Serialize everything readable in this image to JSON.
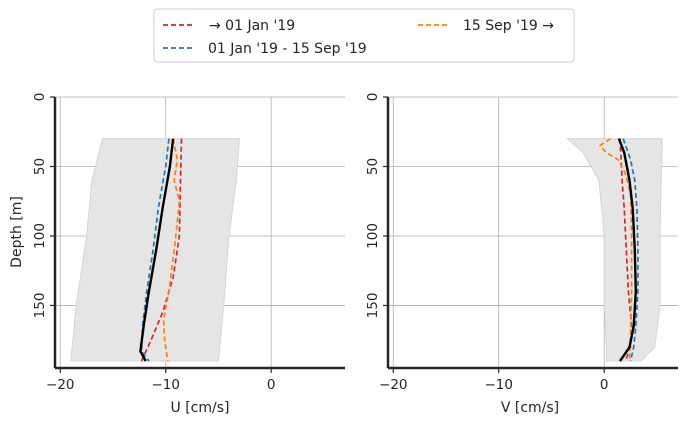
{
  "legend": {
    "entries": [
      {
        "label": "→ 01 Jan '19",
        "color": "#d62728"
      },
      {
        "label": "01 Jan '19 - 15 Sep '19",
        "color": "#1f77b4"
      },
      {
        "label": "15 Sep '19 →",
        "color": "#ff7f0e"
      }
    ]
  },
  "chart_data": [
    {
      "type": "line",
      "xlabel": "U [cm/s]",
      "ylabel": "Depth [m]",
      "xlim": [
        -20.5,
        7
      ],
      "ylim": [
        195,
        0
      ],
      "xticks": [
        -20,
        -10,
        0
      ],
      "xtick_labels": [
        "−20",
        "−10",
        "0"
      ],
      "yticks": [
        0,
        50,
        100,
        150
      ],
      "ytick_labels": [
        "0",
        "50",
        "100",
        "150"
      ],
      "grid": true,
      "band": {
        "color": "#e5e5e5",
        "depth": [
          30,
          60,
          100,
          150,
          190
        ],
        "lower": [
          -16,
          -17,
          -17.5,
          -18.5,
          -19
        ],
        "upper": [
          -3,
          -3.3,
          -4,
          -4.5,
          -5
        ]
      },
      "series": [
        {
          "color": "#d62728",
          "style": "dashed",
          "depth": [
            30,
            60,
            100,
            130,
            155,
            175,
            190
          ],
          "values": [
            -8.5,
            -8.6,
            -8.7,
            -9.3,
            -10.3,
            -11.4,
            -12.3
          ]
        },
        {
          "color": "#1f77b4",
          "style": "dashed",
          "depth": [
            30,
            50,
            80,
            110,
            140,
            165,
            183,
            190
          ],
          "values": [
            -9.7,
            -10.0,
            -10.7,
            -11.2,
            -11.8,
            -12.2,
            -12.3,
            -11.6
          ]
        },
        {
          "color": "#ff7f0e",
          "style": "dashed",
          "depth": [
            30,
            45,
            60,
            75,
            90,
            110,
            140,
            160,
            175,
            190
          ],
          "values": [
            -9.3,
            -8.9,
            -9.2,
            -8.7,
            -8.9,
            -9.2,
            -9.7,
            -10.2,
            -10.1,
            -9.8
          ]
        },
        {
          "color": "#000000",
          "style": "solid",
          "depth": [
            30,
            50,
            80,
            110,
            140,
            165,
            183,
            190
          ],
          "values": [
            -9.3,
            -9.6,
            -10.3,
            -10.9,
            -11.6,
            -12.1,
            -12.4,
            -11.9
          ]
        }
      ]
    },
    {
      "type": "line",
      "xlabel": "V [cm/s]",
      "ylabel": "",
      "xlim": [
        -20.5,
        7
      ],
      "ylim": [
        195,
        0
      ],
      "xticks": [
        -20,
        -10,
        0
      ],
      "xtick_labels": [
        "−20",
        "−10",
        "0"
      ],
      "yticks": [
        0,
        50,
        100,
        150
      ],
      "ytick_labels": [
        "0",
        "50",
        "100",
        "150"
      ],
      "grid": true,
      "band": {
        "color": "#e5e5e5",
        "depth": [
          30,
          40,
          60,
          100,
          150,
          180,
          190
        ],
        "lower": [
          -3.5,
          -2,
          -0.5,
          0,
          0,
          0.2,
          0.2
        ],
        "upper": [
          5.5,
          5.5,
          5.4,
          5.3,
          5.3,
          4.8,
          3.5
        ]
      },
      "series": [
        {
          "color": "#d62728",
          "style": "dashed",
          "depth": [
            30,
            45,
            60,
            80,
            110,
            140,
            165,
            180,
            190
          ],
          "values": [
            1.5,
            1.6,
            1.7,
            1.9,
            2.1,
            2.3,
            2.6,
            2.5,
            2.0
          ]
        },
        {
          "color": "#1f77b4",
          "style": "dashed",
          "depth": [
            30,
            45,
            60,
            80,
            110,
            140,
            165,
            180,
            190
          ],
          "values": [
            1.8,
            2.5,
            2.9,
            3.1,
            3.2,
            3.2,
            3.0,
            2.8,
            2.5
          ]
        },
        {
          "color": "#ff7f0e",
          "style": "dashed",
          "depth": [
            30,
            35,
            40,
            45,
            55,
            70,
            100,
            140,
            170,
            190
          ],
          "values": [
            0.6,
            -0.4,
            0.2,
            1.3,
            2.0,
            2.5,
            2.6,
            2.6,
            2.5,
            2.4
          ]
        },
        {
          "color": "#000000",
          "style": "solid",
          "depth": [
            30,
            40,
            60,
            80,
            110,
            140,
            165,
            180,
            190
          ],
          "values": [
            1.4,
            1.9,
            2.4,
            2.7,
            2.9,
            3.0,
            2.8,
            2.4,
            1.5
          ]
        }
      ]
    }
  ]
}
